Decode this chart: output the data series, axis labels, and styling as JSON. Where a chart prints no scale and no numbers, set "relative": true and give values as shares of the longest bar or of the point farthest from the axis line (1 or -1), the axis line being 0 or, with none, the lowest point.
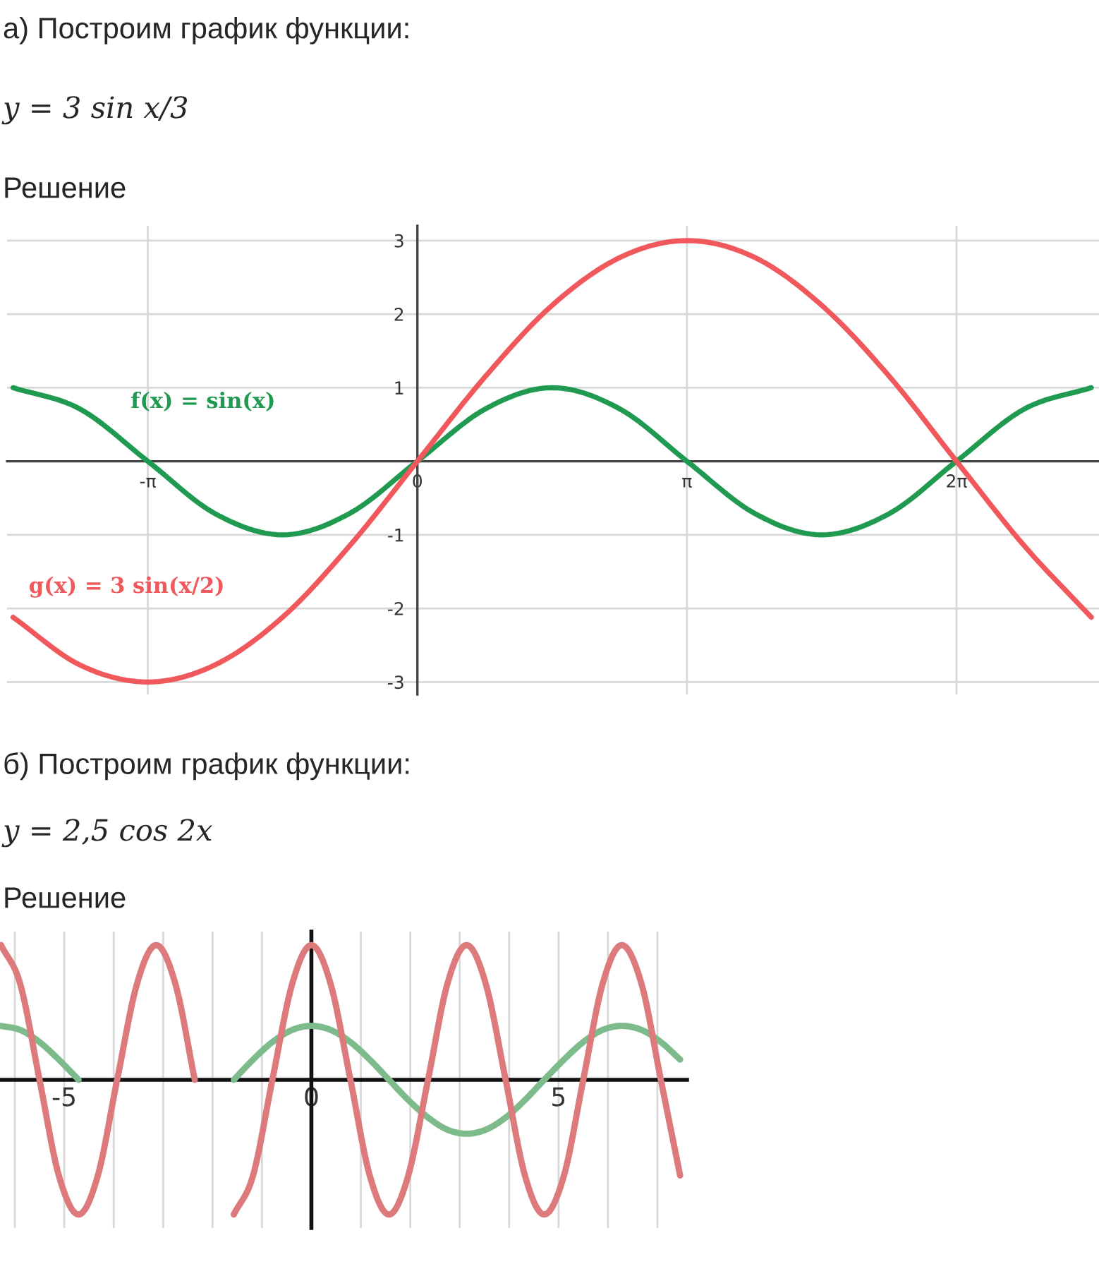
{
  "chart_data": [
    {
      "type": "line",
      "title": "а) Построим график функции:",
      "subtitle": "y = 3 sin x/3",
      "annotations": [
        "Решение"
      ],
      "x": [
        -4.71,
        -3.93,
        -3.14,
        -2.36,
        -1.57,
        -0.79,
        0,
        0.79,
        1.57,
        2.36,
        3.14,
        3.93,
        4.71,
        5.5,
        6.28,
        7.07,
        7.85
      ],
      "series": [
        {
          "name": "f(x) = sin(x)",
          "color": "#1f9a50",
          "values": [
            1,
            0.71,
            0,
            -0.71,
            -1,
            -0.71,
            0,
            0.71,
            1,
            0.71,
            0,
            -0.71,
            -1,
            -0.71,
            0,
            0.71,
            1
          ]
        },
        {
          "name": "g(x) = 3 sin(x/2)",
          "color": "#f0585c",
          "values": [
            -2.12,
            -2.77,
            -3,
            -2.77,
            -2.12,
            -1.15,
            0,
            1.15,
            2.12,
            2.77,
            3,
            2.77,
            2.12,
            1.15,
            0,
            -1.15,
            -2.12
          ]
        }
      ],
      "xlim": [
        -4.78,
        7.94
      ],
      "ylim": [
        -3.17,
        3.2
      ],
      "xticks": [
        {
          "value": -3.14,
          "label": "-π"
        },
        0,
        {
          "value": 3.14,
          "label": "π"
        },
        {
          "value": 6.28,
          "label": "2π"
        }
      ],
      "yticks": [
        -3,
        -2,
        -1,
        1,
        2,
        3
      ],
      "grid": true,
      "marker": "none",
      "line_style": "solid"
    },
    {
      "type": "line",
      "title": "б) Построим график функции:",
      "subtitle": "y = 2,5 cos 2x",
      "annotations": [
        "Решение"
      ],
      "x": [
        -6.28,
        -5.89,
        -5.5,
        -5.11,
        -4.71,
        -4.32,
        -3.93,
        -3.53,
        -3.14,
        -2.75,
        -2.36,
        -1.96,
        -1.57,
        -1.18,
        -0.79,
        -0.39,
        0,
        0.39,
        0.79,
        1.18,
        1.57,
        1.96,
        2.36,
        2.75,
        3.14,
        3.53,
        3.93,
        4.32,
        4.71,
        5.11,
        5.5,
        5.89,
        6.28,
        6.68,
        7.07,
        7.46
      ],
      "series": [
        {
          "color": "#7dbb8c",
          "values": [
            0.4,
            0.37,
            0.28,
            0.15,
            0,
            null,
            null,
            null,
            null,
            null,
            null,
            null,
            0,
            0.15,
            0.28,
            0.37,
            0.4,
            0.37,
            0.28,
            0.15,
            0,
            -0.15,
            -0.28,
            -0.37,
            -0.4,
            -0.37,
            -0.28,
            -0.15,
            0,
            0.15,
            0.28,
            0.37,
            0.4,
            0.37,
            0.28,
            0.15
          ]
        },
        {
          "color": "#dd7a7c",
          "values": [
            1,
            0.71,
            0,
            -0.71,
            -1,
            -0.71,
            0,
            0.71,
            1,
            0.71,
            0,
            null,
            -1,
            -0.71,
            0,
            0.71,
            1,
            0.71,
            0,
            -0.71,
            -1,
            -0.71,
            0,
            0.71,
            1,
            0.71,
            0,
            -0.71,
            -1,
            -0.71,
            0,
            0.71,
            1,
            0.71,
            0,
            -0.71
          ]
        }
      ],
      "relative": true,
      "xlim": [
        -6.3,
        7.6
      ],
      "xticks": [
        {
          "value": -6,
          "label": null
        },
        -5,
        {
          "value": -4,
          "label": null
        },
        {
          "value": -3,
          "label": null
        },
        {
          "value": -2,
          "label": null
        },
        {
          "value": -1,
          "label": null
        },
        0,
        {
          "value": 1,
          "label": null
        },
        {
          "value": 2,
          "label": null
        },
        {
          "value": 3,
          "label": null
        },
        {
          "value": 4,
          "label": null
        },
        5,
        {
          "value": 6,
          "label": null
        },
        {
          "value": 7,
          "label": null
        }
      ],
      "tick_labels": "x",
      "grid": "x",
      "marker": "none",
      "line_style": "solid"
    }
  ]
}
